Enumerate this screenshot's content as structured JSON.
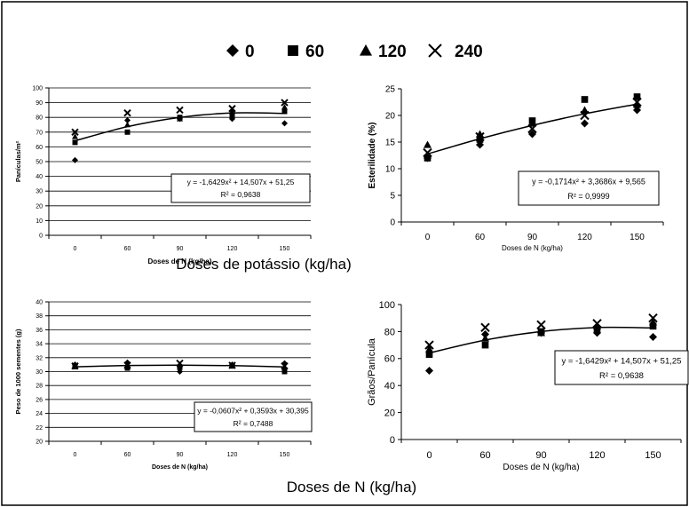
{
  "legend": {
    "entries": [
      {
        "name": "0",
        "marker": "diamond"
      },
      {
        "name": "60",
        "marker": "square"
      },
      {
        "name": "120",
        "marker": "triangle"
      },
      {
        "name": "240",
        "marker": "cross"
      }
    ]
  },
  "annotations": [
    "Doses de potássio (kg/ha)",
    "Doses de N (kg/ha)"
  ],
  "chart_data": [
    {
      "type": "scatter",
      "ylabel": "Panículas/m²",
      "xlabel": "Doses de N (kg/ha)",
      "categories": [
        "0",
        "60",
        "90",
        "120",
        "150"
      ],
      "series": [
        {
          "color": "#000000",
          "values": [
            51,
            78,
            79,
            79,
            76
          ]
        },
        {
          "color": "#000000",
          "values": [
            63,
            70,
            80,
            81,
            84
          ]
        },
        {
          "color": "#000000",
          "values": [
            67,
            75,
            79,
            84,
            87
          ]
        },
        {
          "color": "#000000",
          "values": [
            70,
            83,
            85,
            86,
            90
          ]
        }
      ],
      "fit_values": [
        64.1,
        73.7,
        80.0,
        83.0,
        82.7
      ],
      "equation": "y = -1,6429x² + 14,507x + 51,25",
      "r2": "R² = 0,9638",
      "ylim": [
        0,
        100
      ],
      "yticks": [
        0,
        10,
        20,
        30,
        40,
        50,
        60,
        70,
        80,
        90,
        100
      ],
      "grid": true
    },
    {
      "type": "scatter",
      "ylabel": "Esterilidade (%)",
      "xlabel": "Doses de N (kg/ha)",
      "categories": [
        "0",
        "60",
        "90",
        "120",
        "150"
      ],
      "series": [
        {
          "color": "#000000",
          "values": [
            12,
            14.5,
            16.5,
            18.5,
            21
          ]
        },
        {
          "color": "#000000",
          "values": [
            12,
            15.5,
            19,
            23,
            23.5
          ]
        },
        {
          "color": "#000000",
          "values": [
            14.5,
            16.5,
            18.5,
            21,
            22
          ]
        },
        {
          "color": "#000000",
          "values": [
            13,
            16,
            17.5,
            20,
            22.5
          ]
        }
      ],
      "fit_values": [
        12.76,
        15.62,
        18.13,
        20.3,
        22.13
      ],
      "equation": "y = -0,1714x² + 3,3686x + 9,565",
      "r2": "R² = 0,9999",
      "ylim": [
        0,
        25
      ],
      "yticks": [
        0,
        5,
        10,
        15,
        20,
        25
      ],
      "grid": false
    },
    {
      "type": "scatter",
      "ylabel": "Peso de 1000 sementes (g)",
      "xlabel": "Doses de N (kg/ha)",
      "categories": [
        "0",
        "60",
        "90",
        "120",
        "150"
      ],
      "series": [
        {
          "color": "#000000",
          "values": [
            31.0,
            31.3,
            30.0,
            31.0,
            31.2
          ]
        },
        {
          "color": "#000000",
          "values": [
            30.7,
            30.5,
            30.6,
            30.8,
            30.0
          ]
        },
        {
          "color": "#000000",
          "values": [
            31.0,
            31.0,
            31.0,
            31.0,
            30.7
          ]
        },
        {
          "color": "#000000",
          "values": [
            30.8,
            30.9,
            31.2,
            30.9,
            30.8
          ]
        }
      ],
      "fit_values": [
        30.69,
        30.87,
        30.93,
        30.86,
        30.67
      ],
      "equation": "y = -0,0607x² + 0,3593x + 30,395",
      "r2": "R² = 0,7488",
      "ylim": [
        20,
        40
      ],
      "yticks": [
        20,
        22,
        24,
        26,
        28,
        30,
        32,
        34,
        36,
        38,
        40
      ],
      "grid": true
    },
    {
      "type": "scatter",
      "ylabel": "Grãos/Panícula",
      "xlabel": "Doses de N (kg/ha)",
      "categories": [
        "0",
        "60",
        "90",
        "120",
        "150"
      ],
      "series": [
        {
          "color": "#000000",
          "values": [
            51,
            78,
            79,
            79,
            76
          ]
        },
        {
          "color": "#000000",
          "values": [
            63,
            70,
            80,
            81,
            84
          ]
        },
        {
          "color": "#000000",
          "values": [
            67,
            75,
            79,
            84,
            87
          ]
        },
        {
          "color": "#000000",
          "values": [
            70,
            83,
            85,
            86,
            90
          ]
        }
      ],
      "fit_values": [
        64.1,
        73.7,
        80.0,
        83.0,
        82.7
      ],
      "equation": "y = -1,6429x² + 14,507x + 51,25",
      "r2": "R² = 0,9638",
      "ylim": [
        0,
        100
      ],
      "yticks": [
        0,
        20,
        40,
        60,
        80,
        100
      ],
      "grid": false
    }
  ]
}
